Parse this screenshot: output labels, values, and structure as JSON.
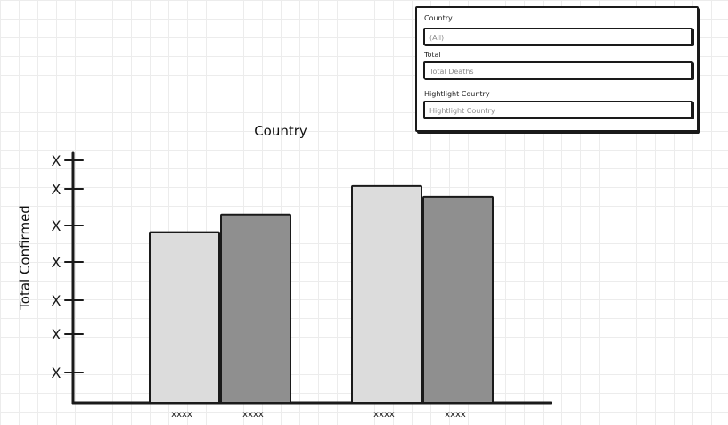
{
  "filters": {
    "country": {
      "label": "Country",
      "value": "(All)"
    },
    "total": {
      "label": "Total",
      "value": "Total Deaths"
    },
    "highlight": {
      "label": "Hightlight Country",
      "value": "Hightlight Country"
    }
  },
  "colors": {
    "bar_light": "#dcdcdc",
    "bar_dark": "#8f8f8f",
    "ink": "#1a1a1a"
  },
  "chart_data": {
    "type": "bar",
    "title": "Country",
    "ylabel": "Total Confirmed",
    "xlabel": "",
    "ytick_labels": [
      "X",
      "X",
      "X",
      "X",
      "X",
      "X",
      "X"
    ],
    "ylim": [
      0,
      7
    ],
    "grid": false,
    "categories": [
      "xxxx",
      "xxxx",
      "xxxx",
      "xxxx"
    ],
    "values": [
      4.8,
      5.3,
      6.1,
      5.8
    ],
    "bar_styles": [
      "light",
      "dark",
      "light",
      "dark"
    ]
  }
}
